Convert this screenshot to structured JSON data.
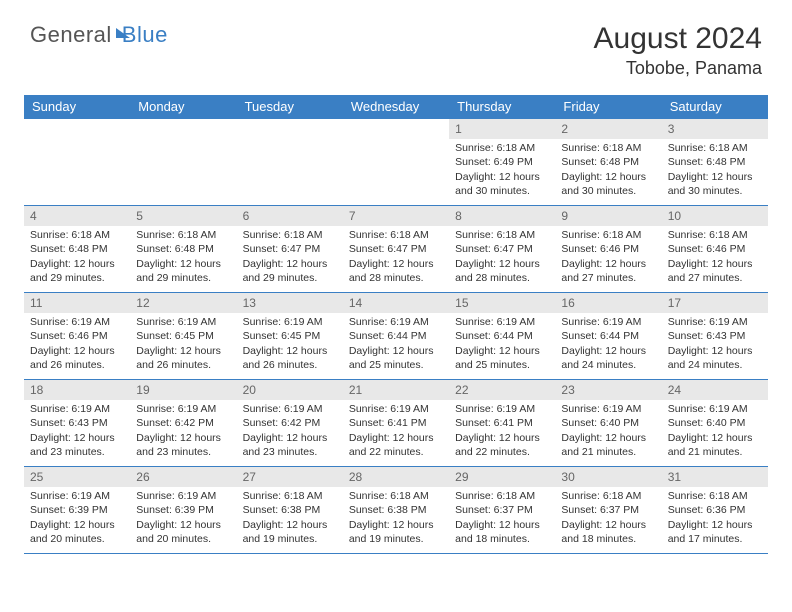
{
  "brand": {
    "part1": "General",
    "part2": "Blue"
  },
  "title": "August 2024",
  "location": "Tobobe, Panama",
  "colors": {
    "header_bg": "#3a7fc4",
    "daynum_bg": "#e8e8e8",
    "border": "#3a7fc4",
    "text": "#333333",
    "muted": "#666666",
    "page_bg": "#ffffff"
  },
  "daynames": [
    "Sunday",
    "Monday",
    "Tuesday",
    "Wednesday",
    "Thursday",
    "Friday",
    "Saturday"
  ],
  "weeks": [
    [
      {
        "n": "",
        "sr": "",
        "ss": "",
        "dl": ""
      },
      {
        "n": "",
        "sr": "",
        "ss": "",
        "dl": ""
      },
      {
        "n": "",
        "sr": "",
        "ss": "",
        "dl": ""
      },
      {
        "n": "",
        "sr": "",
        "ss": "",
        "dl": ""
      },
      {
        "n": "1",
        "sr": "Sunrise: 6:18 AM",
        "ss": "Sunset: 6:49 PM",
        "dl": "Daylight: 12 hours and 30 minutes."
      },
      {
        "n": "2",
        "sr": "Sunrise: 6:18 AM",
        "ss": "Sunset: 6:48 PM",
        "dl": "Daylight: 12 hours and 30 minutes."
      },
      {
        "n": "3",
        "sr": "Sunrise: 6:18 AM",
        "ss": "Sunset: 6:48 PM",
        "dl": "Daylight: 12 hours and 30 minutes."
      }
    ],
    [
      {
        "n": "4",
        "sr": "Sunrise: 6:18 AM",
        "ss": "Sunset: 6:48 PM",
        "dl": "Daylight: 12 hours and 29 minutes."
      },
      {
        "n": "5",
        "sr": "Sunrise: 6:18 AM",
        "ss": "Sunset: 6:48 PM",
        "dl": "Daylight: 12 hours and 29 minutes."
      },
      {
        "n": "6",
        "sr": "Sunrise: 6:18 AM",
        "ss": "Sunset: 6:47 PM",
        "dl": "Daylight: 12 hours and 29 minutes."
      },
      {
        "n": "7",
        "sr": "Sunrise: 6:18 AM",
        "ss": "Sunset: 6:47 PM",
        "dl": "Daylight: 12 hours and 28 minutes."
      },
      {
        "n": "8",
        "sr": "Sunrise: 6:18 AM",
        "ss": "Sunset: 6:47 PM",
        "dl": "Daylight: 12 hours and 28 minutes."
      },
      {
        "n": "9",
        "sr": "Sunrise: 6:18 AM",
        "ss": "Sunset: 6:46 PM",
        "dl": "Daylight: 12 hours and 27 minutes."
      },
      {
        "n": "10",
        "sr": "Sunrise: 6:18 AM",
        "ss": "Sunset: 6:46 PM",
        "dl": "Daylight: 12 hours and 27 minutes."
      }
    ],
    [
      {
        "n": "11",
        "sr": "Sunrise: 6:19 AM",
        "ss": "Sunset: 6:46 PM",
        "dl": "Daylight: 12 hours and 26 minutes."
      },
      {
        "n": "12",
        "sr": "Sunrise: 6:19 AM",
        "ss": "Sunset: 6:45 PM",
        "dl": "Daylight: 12 hours and 26 minutes."
      },
      {
        "n": "13",
        "sr": "Sunrise: 6:19 AM",
        "ss": "Sunset: 6:45 PM",
        "dl": "Daylight: 12 hours and 26 minutes."
      },
      {
        "n": "14",
        "sr": "Sunrise: 6:19 AM",
        "ss": "Sunset: 6:44 PM",
        "dl": "Daylight: 12 hours and 25 minutes."
      },
      {
        "n": "15",
        "sr": "Sunrise: 6:19 AM",
        "ss": "Sunset: 6:44 PM",
        "dl": "Daylight: 12 hours and 25 minutes."
      },
      {
        "n": "16",
        "sr": "Sunrise: 6:19 AM",
        "ss": "Sunset: 6:44 PM",
        "dl": "Daylight: 12 hours and 24 minutes."
      },
      {
        "n": "17",
        "sr": "Sunrise: 6:19 AM",
        "ss": "Sunset: 6:43 PM",
        "dl": "Daylight: 12 hours and 24 minutes."
      }
    ],
    [
      {
        "n": "18",
        "sr": "Sunrise: 6:19 AM",
        "ss": "Sunset: 6:43 PM",
        "dl": "Daylight: 12 hours and 23 minutes."
      },
      {
        "n": "19",
        "sr": "Sunrise: 6:19 AM",
        "ss": "Sunset: 6:42 PM",
        "dl": "Daylight: 12 hours and 23 minutes."
      },
      {
        "n": "20",
        "sr": "Sunrise: 6:19 AM",
        "ss": "Sunset: 6:42 PM",
        "dl": "Daylight: 12 hours and 23 minutes."
      },
      {
        "n": "21",
        "sr": "Sunrise: 6:19 AM",
        "ss": "Sunset: 6:41 PM",
        "dl": "Daylight: 12 hours and 22 minutes."
      },
      {
        "n": "22",
        "sr": "Sunrise: 6:19 AM",
        "ss": "Sunset: 6:41 PM",
        "dl": "Daylight: 12 hours and 22 minutes."
      },
      {
        "n": "23",
        "sr": "Sunrise: 6:19 AM",
        "ss": "Sunset: 6:40 PM",
        "dl": "Daylight: 12 hours and 21 minutes."
      },
      {
        "n": "24",
        "sr": "Sunrise: 6:19 AM",
        "ss": "Sunset: 6:40 PM",
        "dl": "Daylight: 12 hours and 21 minutes."
      }
    ],
    [
      {
        "n": "25",
        "sr": "Sunrise: 6:19 AM",
        "ss": "Sunset: 6:39 PM",
        "dl": "Daylight: 12 hours and 20 minutes."
      },
      {
        "n": "26",
        "sr": "Sunrise: 6:19 AM",
        "ss": "Sunset: 6:39 PM",
        "dl": "Daylight: 12 hours and 20 minutes."
      },
      {
        "n": "27",
        "sr": "Sunrise: 6:18 AM",
        "ss": "Sunset: 6:38 PM",
        "dl": "Daylight: 12 hours and 19 minutes."
      },
      {
        "n": "28",
        "sr": "Sunrise: 6:18 AM",
        "ss": "Sunset: 6:38 PM",
        "dl": "Daylight: 12 hours and 19 minutes."
      },
      {
        "n": "29",
        "sr": "Sunrise: 6:18 AM",
        "ss": "Sunset: 6:37 PM",
        "dl": "Daylight: 12 hours and 18 minutes."
      },
      {
        "n": "30",
        "sr": "Sunrise: 6:18 AM",
        "ss": "Sunset: 6:37 PM",
        "dl": "Daylight: 12 hours and 18 minutes."
      },
      {
        "n": "31",
        "sr": "Sunrise: 6:18 AM",
        "ss": "Sunset: 6:36 PM",
        "dl": "Daylight: 12 hours and 17 minutes."
      }
    ]
  ]
}
